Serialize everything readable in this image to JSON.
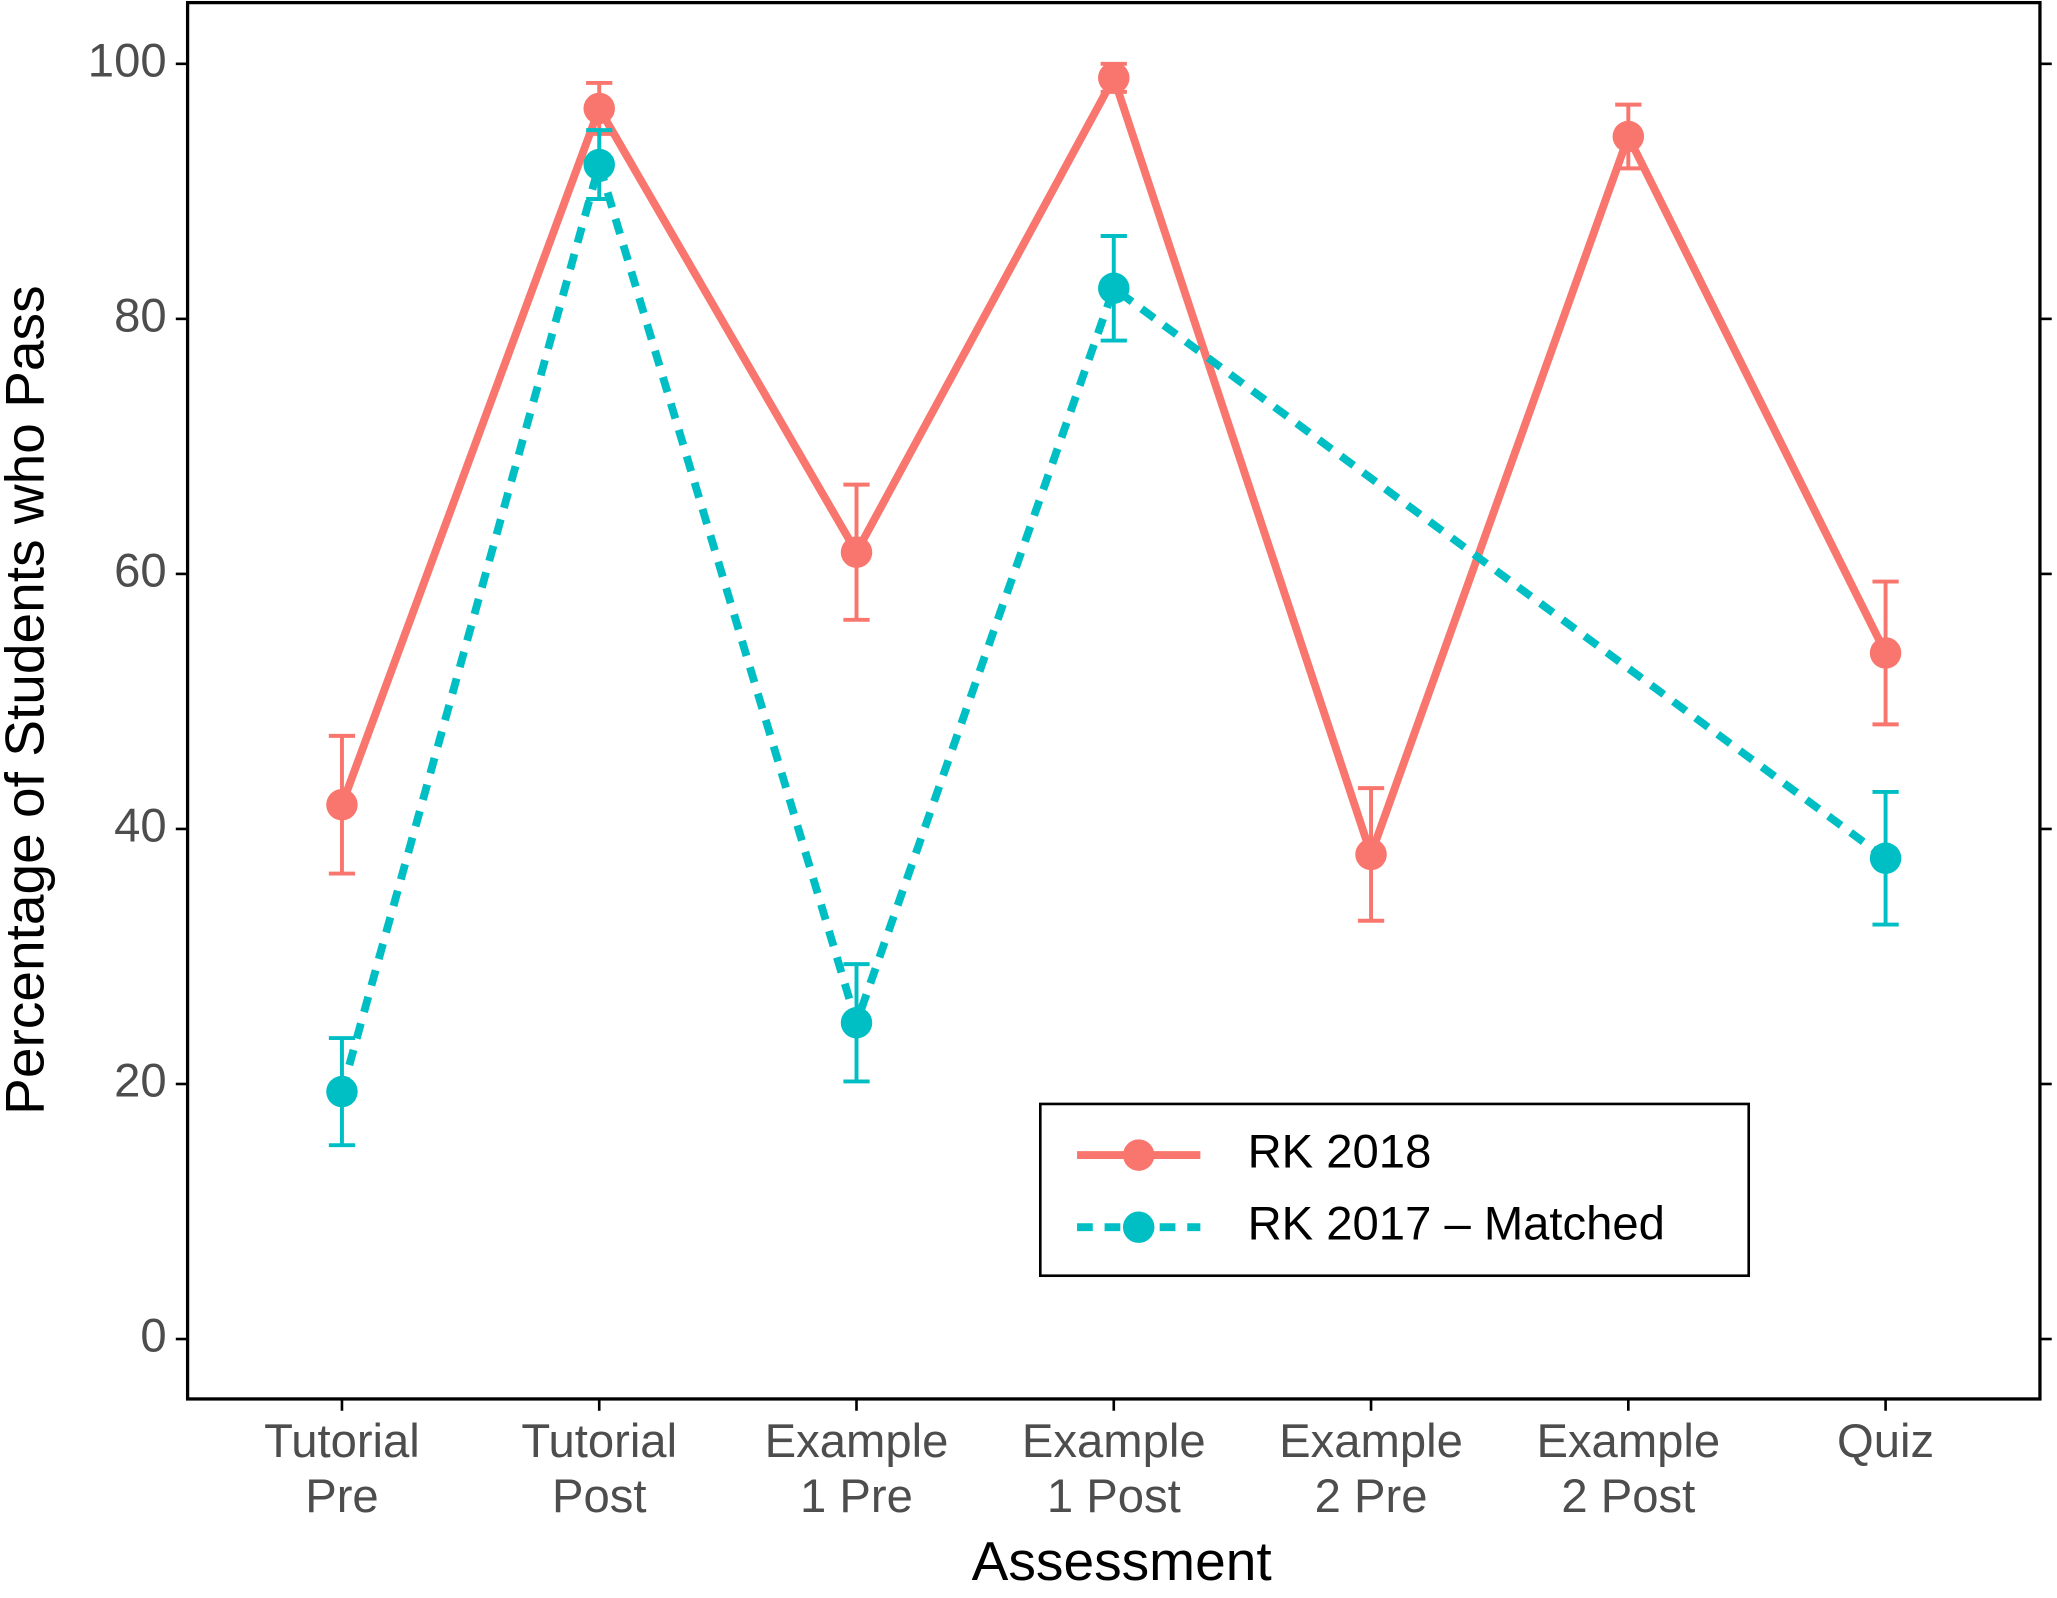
{
  "chart_data": {
    "type": "line",
    "x_label": "Assessment",
    "y_label": "Percentage of Students who Pass",
    "categories": [
      "Tutorial Pre",
      "Tutorial Post",
      "Example 1 Pre",
      "Example 1 Post",
      "Example 2 Pre",
      "Example 2 Post",
      "Quiz"
    ],
    "series": [
      {
        "name": "RK 2018",
        "color": "#f8766d",
        "dash": "solid",
        "values": [
          41.9,
          96.5,
          61.7,
          98.9,
          38.0,
          94.3,
          53.8
        ],
        "errors": [
          5.4,
          2.0,
          5.3,
          1.1,
          5.2,
          2.5,
          5.6
        ]
      },
      {
        "name": "RK 2017 – Matched",
        "color": "#00bfc4",
        "dash": "dashed",
        "values": [
          19.4,
          92.1,
          24.8,
          82.4,
          null,
          null,
          37.7
        ],
        "errors": [
          4.2,
          2.7,
          4.6,
          4.1,
          null,
          null,
          5.2
        ]
      }
    ],
    "connect_gaps": true,
    "ylim": [
      -4.7,
      104.8
    ],
    "yticks": [
      0,
      20,
      40,
      60,
      80,
      100
    ],
    "grid": false,
    "legend": "bottom-right"
  }
}
